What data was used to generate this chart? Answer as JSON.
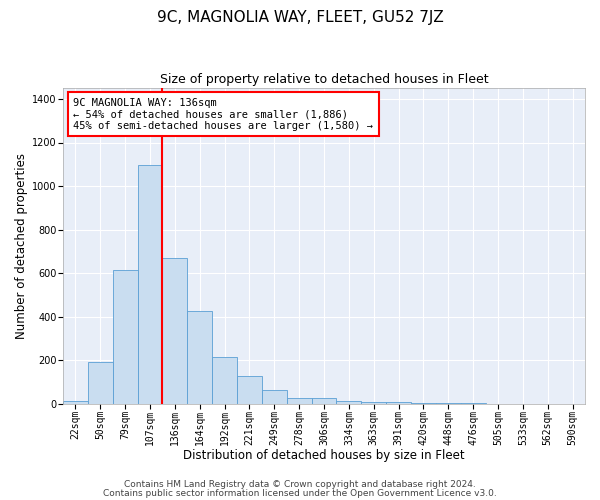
{
  "title": "9C, MAGNOLIA WAY, FLEET, GU52 7JZ",
  "subtitle": "Size of property relative to detached houses in Fleet",
  "xlabel": "Distribution of detached houses by size in Fleet",
  "ylabel": "Number of detached properties",
  "categories": [
    "22sqm",
    "50sqm",
    "79sqm",
    "107sqm",
    "136sqm",
    "164sqm",
    "192sqm",
    "221sqm",
    "249sqm",
    "278sqm",
    "306sqm",
    "334sqm",
    "363sqm",
    "391sqm",
    "420sqm",
    "448sqm",
    "476sqm",
    "505sqm",
    "533sqm",
    "562sqm",
    "590sqm"
  ],
  "values": [
    15,
    190,
    615,
    1095,
    670,
    425,
    215,
    130,
    65,
    28,
    28,
    15,
    10,
    8,
    5,
    3,
    3,
    1,
    0,
    0,
    0
  ],
  "bar_color": "#c9ddf0",
  "bar_edge_color": "#5a9fd4",
  "red_line_x": 3.5,
  "ylim": [
    0,
    1450
  ],
  "yticks": [
    0,
    200,
    400,
    600,
    800,
    1000,
    1200,
    1400
  ],
  "annotation_text": "9C MAGNOLIA WAY: 136sqm\n← 54% of detached houses are smaller (1,886)\n45% of semi-detached houses are larger (1,580) →",
  "footer_line1": "Contains HM Land Registry data © Crown copyright and database right 2024.",
  "footer_line2": "Contains public sector information licensed under the Open Government Licence v3.0.",
  "fig_bg_color": "#ffffff",
  "plot_bg_color": "#e8eef8",
  "grid_color": "#ffffff",
  "title_fontsize": 11,
  "subtitle_fontsize": 9,
  "xlabel_fontsize": 8.5,
  "ylabel_fontsize": 8.5,
  "tick_fontsize": 7,
  "footer_fontsize": 6.5,
  "ann_fontsize": 7.5
}
